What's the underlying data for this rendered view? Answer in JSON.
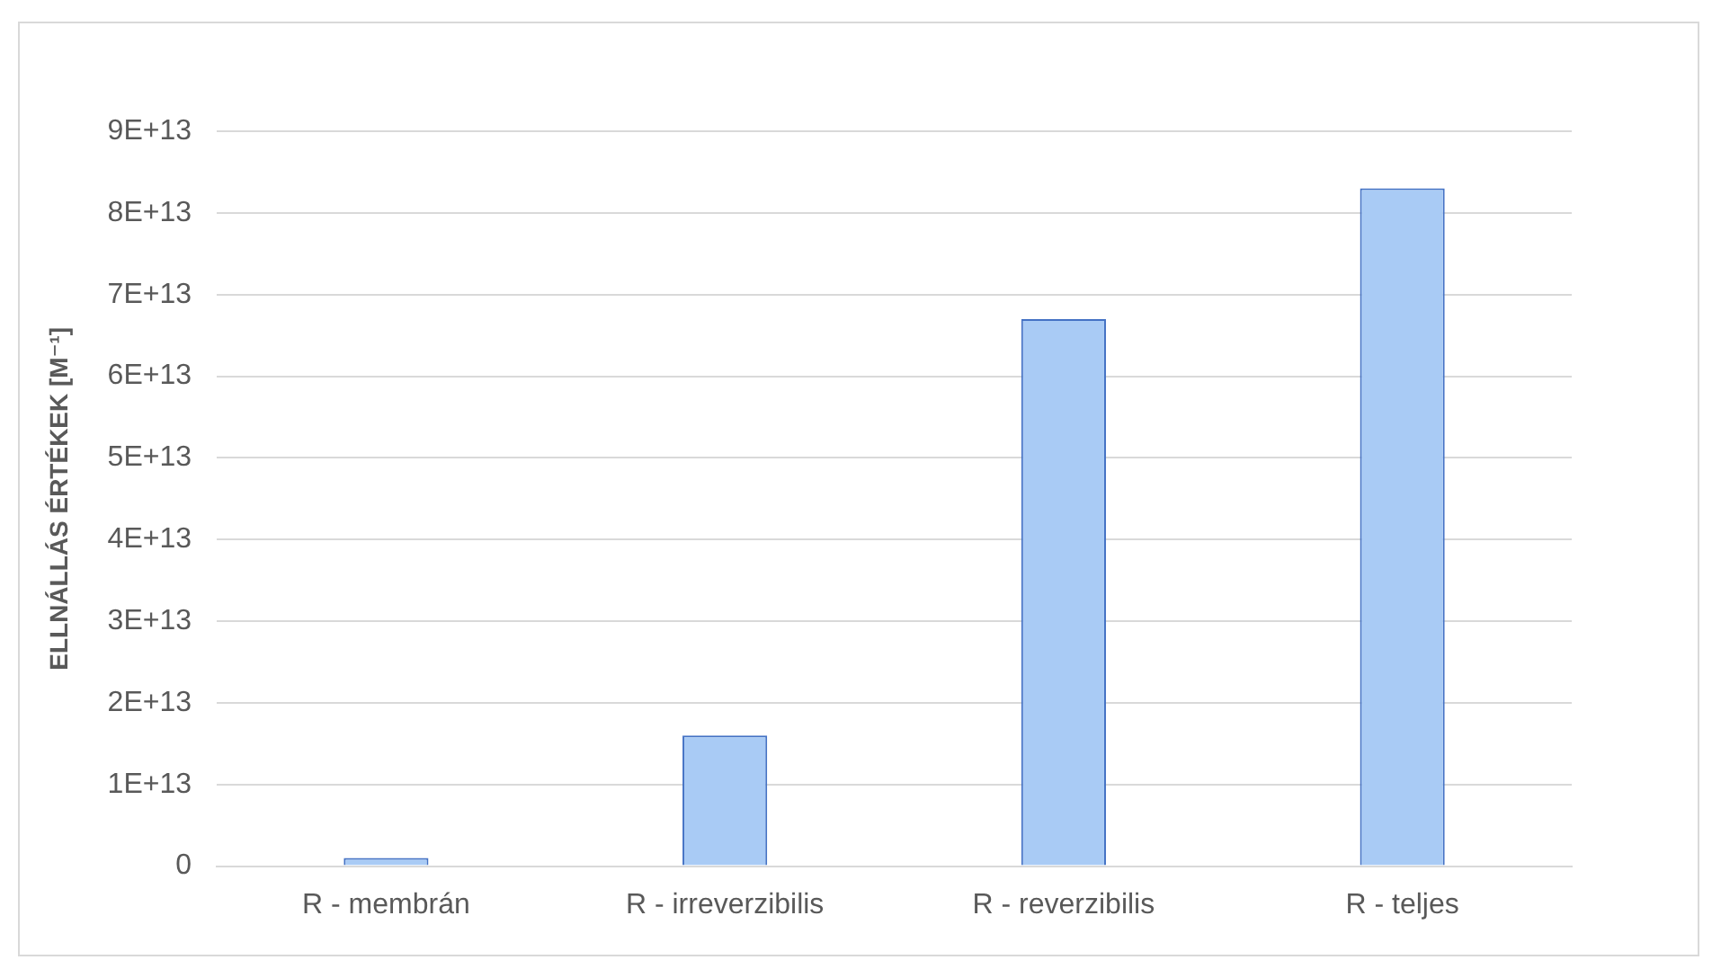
{
  "chart_data": {
    "type": "bar",
    "ylabel": "ELLNÁLLÁS ÉRTÉKEK [M⁻¹]",
    "categories": [
      "R - membrán",
      "R - irreverzibilis",
      "R - reverzibilis",
      "R - teljes"
    ],
    "values": [
      1000000000000.0,
      16000000000000.0,
      67000000000000.0,
      83000000000000.0
    ],
    "color": "#a9cbf5",
    "ylim": [
      0,
      90000000000000.0
    ],
    "yticks": [
      0,
      {
        "value": 10000000000000.0,
        "label": "1E+13"
      },
      {
        "value": 20000000000000.0,
        "label": "2E+13"
      },
      {
        "value": 30000000000000.0,
        "label": "3E+13"
      },
      {
        "value": 40000000000000.0,
        "label": "4E+13"
      },
      {
        "value": 50000000000000.0,
        "label": "5E+13"
      },
      {
        "value": 60000000000000.0,
        "label": "6E+13"
      },
      {
        "value": 70000000000000.0,
        "label": "7E+13"
      },
      {
        "value": 80000000000000.0,
        "label": "8E+13"
      },
      {
        "value": 90000000000000.0,
        "label": "9E+13"
      }
    ],
    "grid": "y"
  }
}
